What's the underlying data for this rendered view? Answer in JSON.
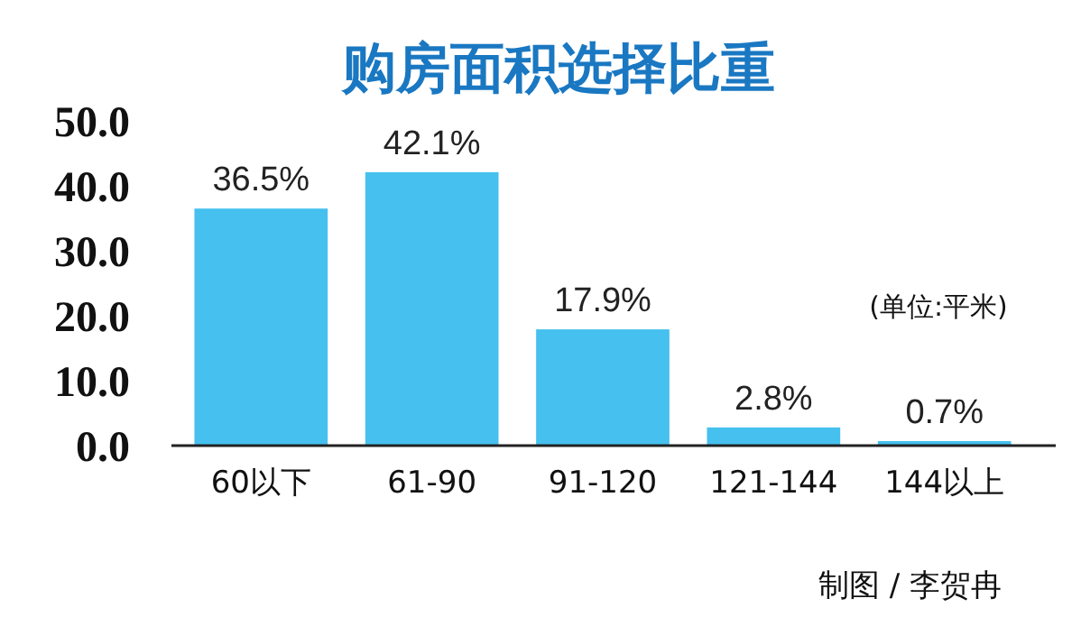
{
  "chart_data": {
    "type": "bar",
    "title": "购房面积选择比重",
    "categories": [
      "60以下",
      "61-90",
      "91-120",
      "121-144",
      "144以上"
    ],
    "values": [
      36.5,
      42.1,
      17.9,
      2.8,
      0.7
    ],
    "value_labels": [
      "36.5%",
      "42.1%",
      "17.9%",
      "2.8%",
      "0.7%"
    ],
    "color": "#45c0ef",
    "ylim": [
      0,
      50
    ],
    "yticks": [
      {
        "value": 0,
        "label": "0.0"
      },
      {
        "value": 10,
        "label": "10.0"
      },
      {
        "value": 20,
        "label": "20.0"
      },
      {
        "value": 30,
        "label": "30.0"
      },
      {
        "value": 40,
        "label": "40.0"
      },
      {
        "value": 50,
        "label": "50.0"
      }
    ],
    "grid": false,
    "annotations": [
      "(单位:平米)",
      "制图 / 李贺冉"
    ]
  }
}
